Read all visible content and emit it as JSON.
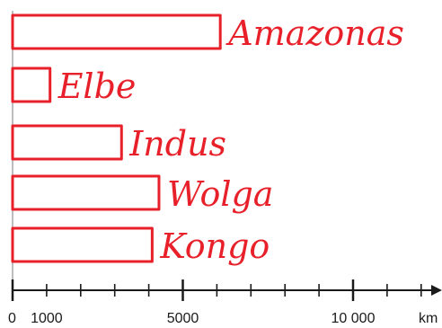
{
  "chart_data": {
    "type": "bar",
    "orientation": "horizontal",
    "categories": [
      "Amazonas",
      "Elbe",
      "Indus",
      "Wolga",
      "Kongo"
    ],
    "values": [
      6100,
      1100,
      3200,
      4300,
      4100
    ],
    "x_unit": "km",
    "xlim": [
      0,
      12000
    ],
    "ticks": [
      0,
      1000,
      2000,
      3000,
      4000,
      5000,
      6000,
      7000,
      8000,
      9000,
      10000,
      11000,
      12000
    ],
    "tick_labels": [
      {
        "value": 0,
        "text": "0"
      },
      {
        "value": 1000,
        "text": "1000"
      },
      {
        "value": 5000,
        "text": "5000"
      },
      {
        "value": 10000,
        "text": "10 000"
      }
    ],
    "bar_color": "#e8202a",
    "grid": false
  }
}
